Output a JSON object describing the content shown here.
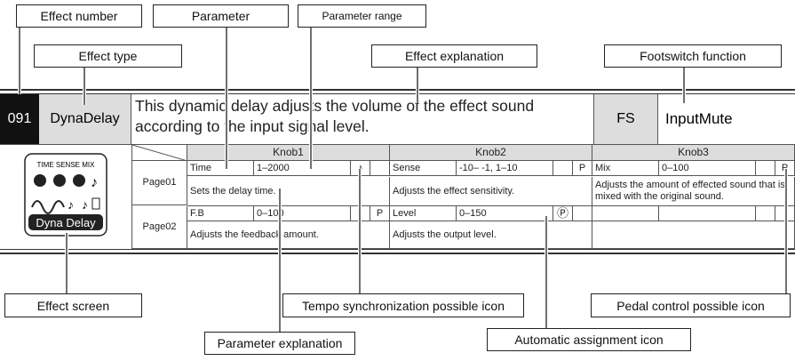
{
  "callouts": {
    "effect_number": "Effect number",
    "parameter": "Parameter",
    "parameter_range": "Parameter range",
    "effect_type": "Effect type",
    "effect_explanation": "Effect explanation",
    "footswitch_function": "Footswitch function",
    "effect_screen": "Effect screen",
    "tempo_icon": "Tempo synchronization possible icon",
    "pedal_icon": "Pedal control possible icon",
    "parameter_explanation": "Parameter explanation",
    "auto_icon": "Automatic assignment icon"
  },
  "effect": {
    "number": "091",
    "type": "DynaDelay",
    "explanation": "This dynamic delay adjusts the volume of the effect sound according to the input signal level.",
    "fs_label": "FS",
    "fs_function": "InputMute"
  },
  "screen": {
    "knob_labels": "TIME SENSE MIX",
    "name": "Dyna Delay"
  },
  "table": {
    "knobs": [
      "Knob1",
      "Knob2",
      "Knob3"
    ],
    "pages": [
      {
        "name": "Page01",
        "params": [
          {
            "name": "Time",
            "range": "1–2000",
            "icon": "♪",
            "explanation": "Sets the delay time."
          },
          {
            "name": "Sense",
            "range": "-10– -1, 1–10",
            "pedal": "P",
            "explanation": "Adjusts the effect sensitivity."
          },
          {
            "name": "Mix",
            "range": "0–100",
            "pedal": "P",
            "explanation": "Adjusts the amount of effected sound that is mixed with the original sound."
          }
        ]
      },
      {
        "name": "Page02",
        "params": [
          {
            "name": "F.B",
            "range": "0–100",
            "pedal": "P",
            "explanation": "Adjusts the feedback amount."
          },
          {
            "name": "Level",
            "range": "0–150",
            "icon": "Ⓟ",
            "explanation": "Adjusts the output level."
          }
        ]
      }
    ]
  }
}
